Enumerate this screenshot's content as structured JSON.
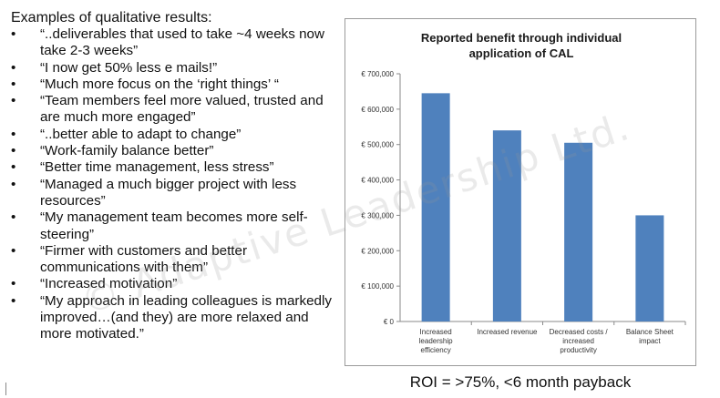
{
  "left_panel": {
    "heading": "Examples of qualitative results:",
    "bullet_symbol": "•",
    "quotes": [
      "“..deliverables that used to take ~4 weeks now take 2-3 weeks”",
      "“I now get 50% less e mails!”",
      "“Much more focus on the ‘right things’ “",
      "“Team members feel more valued, trusted and are much more engaged”",
      "“..better able to adapt to change”",
      "“Work-family balance better”",
      "“Better time management, less stress”",
      "“Managed a much bigger project with less resources”",
      "“My management team becomes more self-steering”",
      "“Firmer with customers and better communications with them”",
      "“Increased motivation”",
      "“My approach in leading colleagues is markedly improved…(and they) are more relaxed and more motivated.”"
    ]
  },
  "watermark": "© Adaptive Leadership Ltd.",
  "roi_text": "ROI = >75%, <6 month payback",
  "chart_data": {
    "type": "bar",
    "title": "Reported benefit through individual application of CAL",
    "categories": [
      "Increased leadership efficiency",
      "Increased revenue",
      "Decreased costs / increased productivity",
      "Balance Sheet impact"
    ],
    "category_lines": [
      [
        "Increased",
        "leadership",
        "efficiency"
      ],
      [
        "Increased revenue"
      ],
      [
        "Decreased costs /",
        "increased",
        "productivity"
      ],
      [
        "Balance Sheet",
        "impact"
      ]
    ],
    "values": [
      645000,
      540000,
      505000,
      300000
    ],
    "ylim": [
      0,
      700000
    ],
    "yticks": [
      0,
      100000,
      200000,
      300000,
      400000,
      500000,
      600000,
      700000
    ],
    "ytick_labels": [
      "€ 0",
      "€ 100,000",
      "€ 200,000",
      "€ 300,000",
      "€ 400,000",
      "€ 500,000",
      "€ 600,000",
      "€ 700,000"
    ],
    "xlabel": "",
    "ylabel": "",
    "bar_color": "#4f81bd",
    "grid": false,
    "legend": "none"
  }
}
